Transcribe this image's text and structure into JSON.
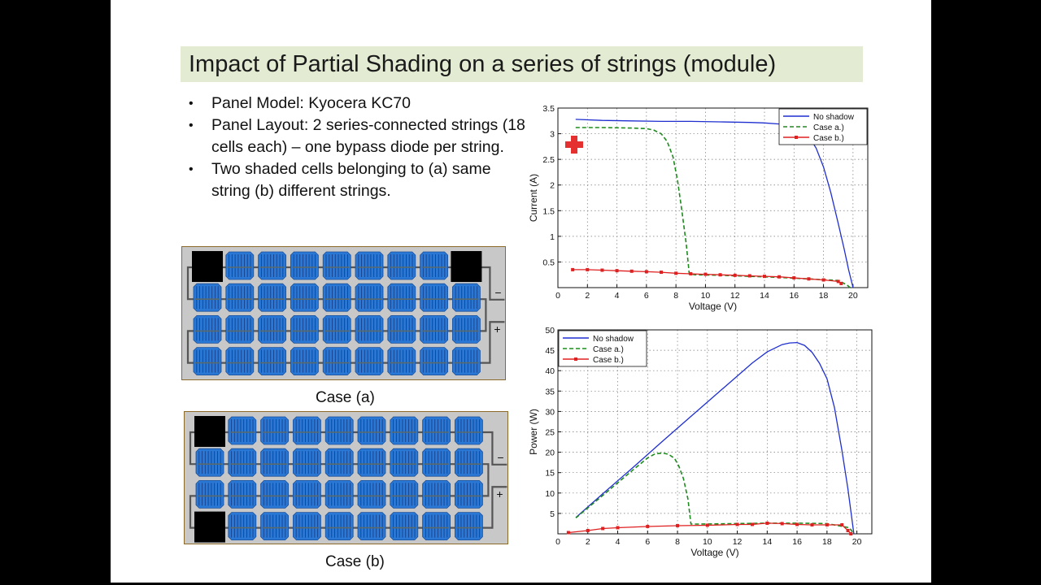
{
  "slide": {
    "title": "Impact of Partial Shading on a series  of strings (module)",
    "bullets": [
      "Panel Model: Kyocera KC70",
      "Panel Layout: 2 series-connected strings (18 cells each) – one bypass diode per string.",
      "Two shaded cells belonging to (a) same string (b) different strings."
    ],
    "panels": [
      {
        "caption": "Case (a)",
        "terminal_minus": "−",
        "terminal_plus": "+",
        "rows": 4,
        "cols": 9,
        "shaded": [
          [
            0,
            0
          ],
          [
            0,
            8
          ]
        ]
      },
      {
        "caption": "Case (b)",
        "terminal_minus": "−",
        "terminal_plus": "+",
        "rows": 4,
        "cols": 9,
        "shaded": [
          [
            0,
            0
          ],
          [
            3,
            0
          ]
        ]
      }
    ],
    "colors": {
      "cell": "#2a78d6",
      "shade": "#000000",
      "panel_bg": "#c8c8c8",
      "title_bg": "#e3ecd3",
      "pointer": "#e53030"
    }
  },
  "chart_data": [
    {
      "type": "line",
      "xlabel": "Voltage (V)",
      "ylabel": "Current (A)",
      "xlim": [
        0,
        21
      ],
      "ylim": [
        0,
        3.5
      ],
      "xticks": [
        "0",
        "2",
        "4",
        "6",
        "8",
        "10",
        "12",
        "14",
        "16",
        "18",
        "20"
      ],
      "yticks": [
        "0.5",
        "1",
        "1.5",
        "2",
        "2.5",
        "3",
        "3.5"
      ],
      "grid": true,
      "legend_position": "top-right",
      "series": [
        {
          "name": "No shadow",
          "color": "#1f2fcf",
          "style": "solid",
          "x": [
            1.2,
            3,
            5,
            7,
            9,
            11,
            13,
            14,
            15,
            16,
            16.5,
            17,
            17.5,
            18,
            18.5,
            19,
            19.4,
            19.7,
            20
          ],
          "y": [
            3.28,
            3.26,
            3.25,
            3.24,
            3.24,
            3.23,
            3.22,
            3.21,
            3.19,
            3.15,
            3.08,
            2.95,
            2.72,
            2.35,
            1.85,
            1.25,
            0.75,
            0.35,
            0.0
          ]
        },
        {
          "name": "Case a.)",
          "color": "#1e8a1e",
          "style": "dashed",
          "x": [
            1.2,
            3,
            5,
            6,
            6.5,
            7,
            7.4,
            7.8,
            8.1,
            8.4,
            8.7,
            8.9,
            9.3,
            11,
            13,
            15,
            17,
            19,
            19.6,
            19.8
          ],
          "y": [
            3.12,
            3.12,
            3.11,
            3.1,
            3.07,
            3.0,
            2.85,
            2.55,
            2.1,
            1.5,
            0.85,
            0.27,
            0.25,
            0.24,
            0.22,
            0.2,
            0.17,
            0.14,
            0.05,
            0.0
          ]
        },
        {
          "name": "Case b.)",
          "color": "#e02020",
          "style": "solid-marker",
          "x": [
            1,
            2,
            3,
            4,
            5,
            6,
            7,
            8,
            9,
            10,
            11,
            12,
            13,
            14,
            15,
            16,
            17,
            18,
            19,
            19.2
          ],
          "y": [
            0.35,
            0.35,
            0.34,
            0.33,
            0.32,
            0.31,
            0.3,
            0.28,
            0.27,
            0.26,
            0.25,
            0.24,
            0.23,
            0.22,
            0.21,
            0.19,
            0.17,
            0.15,
            0.12,
            0.08
          ]
        }
      ]
    },
    {
      "type": "line",
      "xlabel": "Voltage (V)",
      "ylabel": "Power (W)",
      "xlim": [
        0,
        21
      ],
      "ylim": [
        0,
        50
      ],
      "xticks": [
        "0",
        "2",
        "4",
        "6",
        "8",
        "10",
        "12",
        "14",
        "16",
        "18",
        "20"
      ],
      "yticks": [
        "5",
        "10",
        "15",
        "20",
        "25",
        "30",
        "35",
        "40",
        "45",
        "50"
      ],
      "grid": true,
      "legend_position": "top-left",
      "series": [
        {
          "name": "No shadow",
          "color": "#1f2fcf",
          "style": "solid",
          "x": [
            1.2,
            3,
            5,
            7,
            9,
            11,
            13,
            14,
            15,
            15.5,
            16,
            16.5,
            17,
            17.5,
            18,
            18.5,
            19,
            19.4,
            19.8
          ],
          "y": [
            4,
            9.8,
            16.2,
            22.7,
            29.1,
            35.5,
            41.9,
            44.6,
            46.4,
            46.8,
            46.9,
            46.2,
            44.5,
            41.8,
            38,
            31,
            20.5,
            11,
            0
          ]
        },
        {
          "name": "Case a.)",
          "color": "#1e8a1e",
          "style": "dashed",
          "x": [
            1.2,
            3,
            5,
            6,
            6.5,
            7,
            7.4,
            7.8,
            8.1,
            8.4,
            8.7,
            8.9,
            9.5,
            12,
            14,
            16,
            18,
            19.5,
            19.8
          ],
          "y": [
            3.9,
            9.4,
            15.6,
            18.6,
            19.6,
            19.8,
            19.5,
            18.5,
            16.5,
            13.5,
            8.5,
            2.4,
            2.4,
            2.5,
            2.6,
            2.6,
            2.5,
            1.5,
            0
          ]
        },
        {
          "name": "Case b.)",
          "color": "#e02020",
          "style": "solid-marker",
          "x": [
            0.7,
            2,
            3,
            4,
            6,
            8,
            10,
            12,
            13,
            14,
            15,
            16,
            17,
            18,
            19,
            19.4,
            19.6
          ],
          "y": [
            0.3,
            0.8,
            1.3,
            1.5,
            1.8,
            2,
            2.1,
            2.3,
            2.3,
            2.6,
            2.5,
            2.3,
            2.2,
            2.2,
            2.2,
            0.8,
            0
          ]
        }
      ]
    }
  ]
}
